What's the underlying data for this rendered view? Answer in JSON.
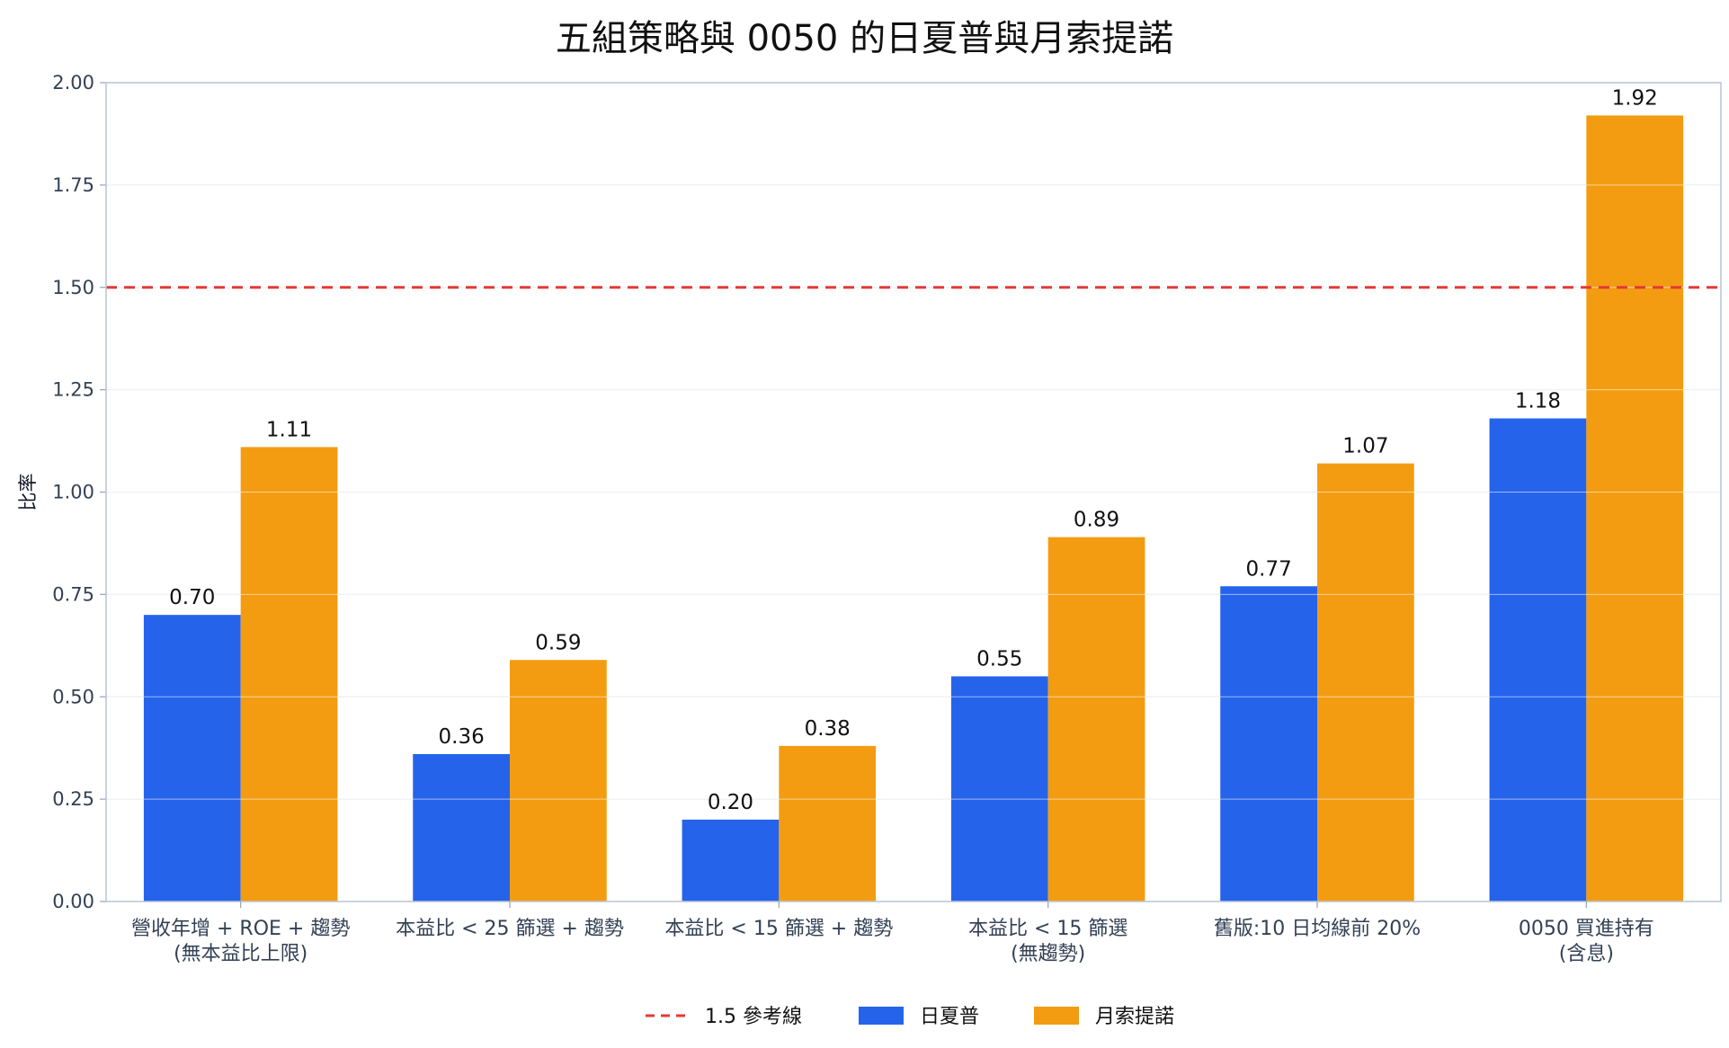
{
  "chart_data": {
    "type": "bar",
    "title": "五組策略與 0050 的日夏普與月索提諾",
    "xlabel": "",
    "ylabel": "比率",
    "ylim": [
      0,
      2.0
    ],
    "yticks": [
      "0.00",
      "0.25",
      "0.50",
      "0.75",
      "1.00",
      "1.25",
      "1.50",
      "1.75",
      "2.00"
    ],
    "categories": [
      [
        "營收年增 + ROE + 趨勢",
        "(無本益比上限)"
      ],
      [
        "本益比 < 25 篩選 + 趨勢"
      ],
      [
        "本益比 < 15 篩選 + 趨勢"
      ],
      [
        "本益比 < 15 篩選",
        "(無趨勢)"
      ],
      [
        "舊版:10 日均線前 20%"
      ],
      [
        "0050 買進持有",
        "(含息)"
      ]
    ],
    "series": [
      {
        "name": "日夏普",
        "color": "#2563eb",
        "values": [
          0.7,
          0.36,
          0.2,
          0.55,
          0.77,
          1.18
        ]
      },
      {
        "name": "月索提諾",
        "color": "#f39c12",
        "values": [
          1.11,
          0.59,
          0.38,
          0.89,
          1.07,
          1.92
        ]
      }
    ],
    "reference_line": {
      "value": 1.5,
      "label": "1.5 參考線",
      "color": "#e53935",
      "style": "dashed"
    },
    "grid": true,
    "legend_position": "bottom-center"
  }
}
